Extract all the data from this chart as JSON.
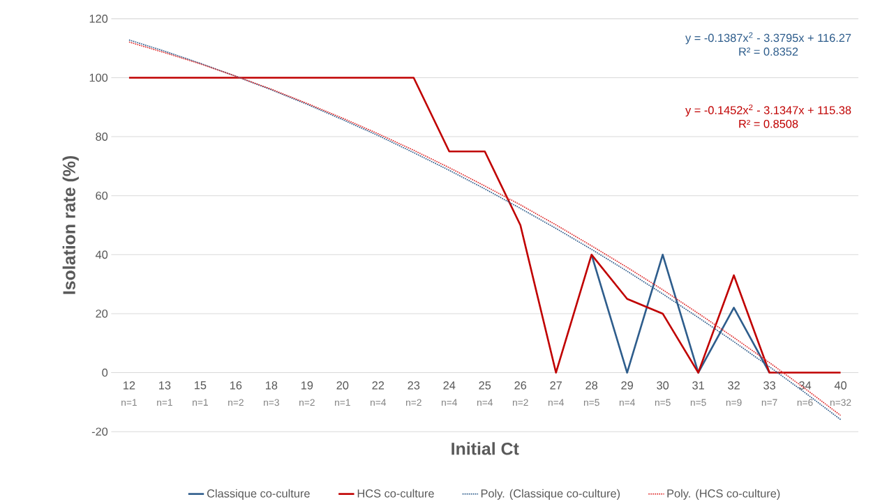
{
  "chart_data": {
    "type": "line",
    "xlabel": "Initial Ct",
    "ylabel": "Isolation rate (%)",
    "categories": [
      "12",
      "13",
      "15",
      "16",
      "18",
      "19",
      "20",
      "22",
      "23",
      "24",
      "25",
      "26",
      "27",
      "28",
      "29",
      "30",
      "31",
      "32",
      "33",
      "34",
      "40"
    ],
    "series": [
      {
        "name": "Classique co-culture",
        "color": "#2e5d8c",
        "line_style": "solid",
        "values": [
          null,
          null,
          null,
          null,
          null,
          null,
          null,
          null,
          null,
          null,
          null,
          null,
          null,
          40,
          0,
          40,
          0,
          22,
          0,
          null,
          null
        ]
      },
      {
        "name": "HCS co-culture",
        "color": "#c00000",
        "line_style": "solid",
        "values": [
          100,
          100,
          100,
          100,
          100,
          100,
          100,
          100,
          100,
          75,
          75,
          50,
          0,
          40,
          25,
          20,
          0,
          33,
          0,
          0,
          0
        ]
      },
      {
        "name": "Poly. (Classique co-culture)",
        "color": "#2e5d8c",
        "line_style": "dotted",
        "values": [
          112.8,
          109.0,
          104.9,
          100.5,
          95.9,
          91.0,
          85.8,
          80.4,
          74.6,
          68.6,
          62.3,
          55.7,
          48.9,
          41.8,
          34.4,
          26.7,
          18.7,
          10.5,
          2.0,
          -6.8,
          -15.9
        ]
      },
      {
        "name": "Poly. (HCS co-culture)",
        "color": "#e03030",
        "line_style": "dotted",
        "values": [
          112.1,
          108.5,
          104.7,
          100.5,
          96.1,
          91.3,
          86.3,
          81.0,
          75.4,
          69.5,
          63.3,
          56.9,
          50.1,
          43.0,
          35.7,
          28.1,
          20.1,
          11.9,
          3.4,
          -5.4,
          -14.5
        ]
      }
    ],
    "ylim": [
      -20,
      120
    ],
    "yticks": [
      -20,
      0,
      20,
      40,
      60,
      80,
      100,
      120
    ],
    "grid": "y",
    "legend": "bottom",
    "marker": "none",
    "annotations": [
      "y = -0.1387x$^{2}$ - 3.3795x + 116.27",
      "R² = 0.8352",
      "y = -0.1452x$^{2}$ - 3.1347x + 115.38",
      "R² = 0.8508",
      "n=1",
      "n=1",
      "n=1",
      "n=2",
      "n=3",
      "n=2",
      "n=1",
      "n=4",
      "n=2",
      "n=4",
      "n=4",
      "n=2",
      "n=4",
      "n=5",
      "n=4",
      "n=5",
      "n=5",
      "n=9",
      "n=7",
      "n=6",
      "n=32"
    ]
  }
}
